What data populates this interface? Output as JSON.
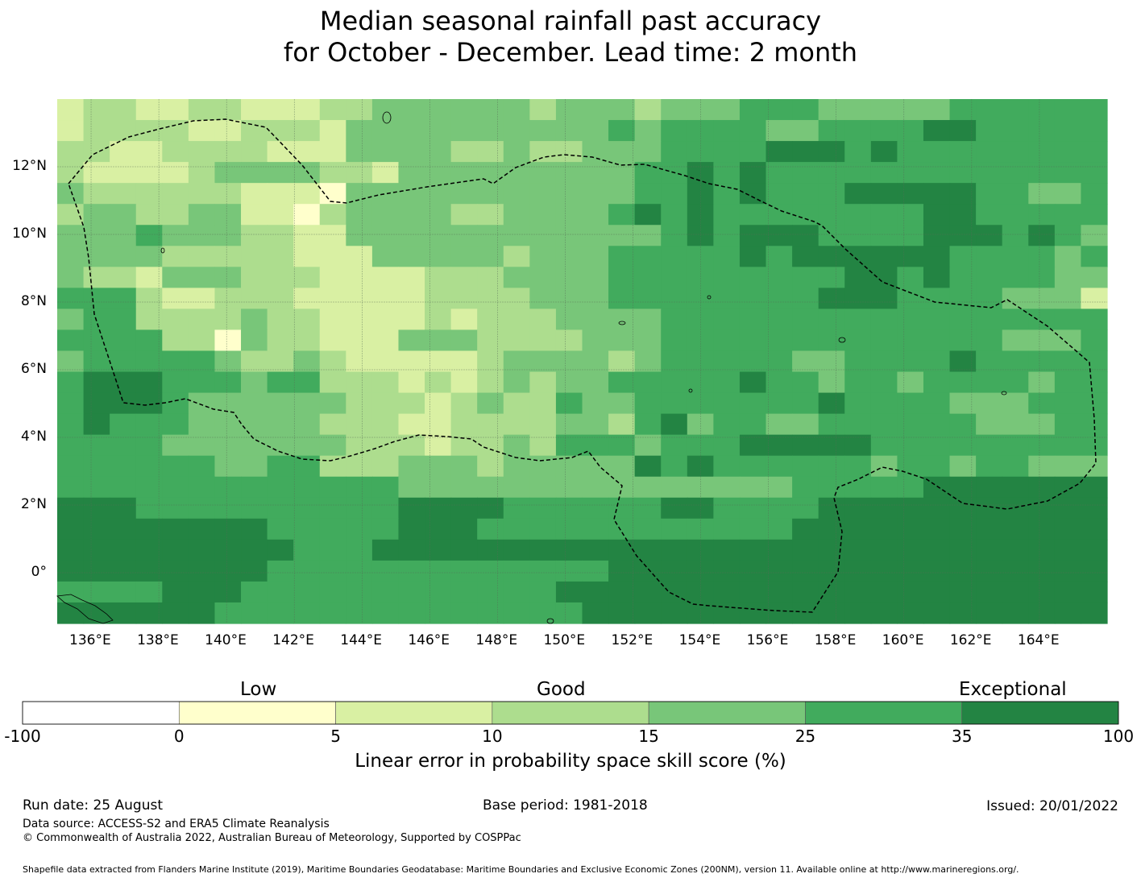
{
  "title_line1": "Median seasonal rainfall past accuracy",
  "title_line2": "for October - December. Lead time: 2 month",
  "map": {
    "lon_range": [
      135,
      166
    ],
    "lat_range": [
      -1.5,
      14
    ],
    "lon_ticks": [
      "136°E",
      "138°E",
      "140°E",
      "142°E",
      "144°E",
      "146°E",
      "148°E",
      "150°E",
      "152°E",
      "154°E",
      "156°E",
      "158°E",
      "160°E",
      "162°E",
      "164°E"
    ],
    "lat_ticks": [
      "12°N",
      "10°N",
      "8°N",
      "6°N",
      "4°N",
      "2°N",
      "0°"
    ],
    "gridlines": true,
    "boundary": "EEZ (dashed)",
    "palette": [
      "#ffffff",
      "#ffffcc",
      "#d9f0a3",
      "#addd8e",
      "#78c679",
      "#41ab5d",
      "#238443"
    ]
  },
  "colorbar": {
    "bins": [
      {
        "from": -100,
        "to": 0,
        "color": "#ffffff"
      },
      {
        "from": 0,
        "to": 5,
        "color": "#ffffcc"
      },
      {
        "from": 5,
        "to": 10,
        "color": "#d9f0a3"
      },
      {
        "from": 10,
        "to": 15,
        "color": "#addd8e"
      },
      {
        "from": 15,
        "to": 25,
        "color": "#78c679"
      },
      {
        "from": 25,
        "to": 35,
        "color": "#41ab5d"
      },
      {
        "from": 35,
        "to": 100,
        "color": "#238443"
      }
    ],
    "tick_labels": [
      "-100",
      "0",
      "5",
      "10",
      "15",
      "25",
      "35",
      "100"
    ],
    "categories": [
      "Low",
      "Good",
      "Exceptional"
    ],
    "label": "Linear error in probability space skill score (%)"
  },
  "footer": {
    "run_date": "Run date: 25 August",
    "base_period": "Base period: 1981-2018",
    "issued": "Issued: 20/01/2022",
    "data_source": "Data source: ACCESS-S2 and ERA5 Climate Reanalysis",
    "copyright": "© Commonwealth of Australia 2022, Australian Bureau of Meteorology, Supported by COSPPac",
    "shapefile": "Shapefile data extracted from Flanders Marine Institute (2019), Maritime Boundaries Geodatabase: Maritime Boundaries and Exclusive Economic Zones (200NM), version 11. Available online at http://www.marineregions.org/."
  }
}
